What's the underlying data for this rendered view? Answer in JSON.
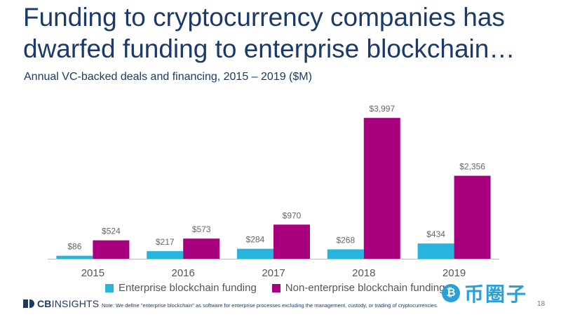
{
  "header": {
    "title": "Funding to cryptocurrency companies has dwarfed funding to enterprise blockchain…",
    "subtitle": "Annual VC-backed deals and financing, 2015 – 2019 ($M)"
  },
  "chart_data": {
    "type": "bar",
    "categories": [
      "2015",
      "2016",
      "2017",
      "2018",
      "2019"
    ],
    "series": [
      {
        "name": "Enterprise blockchain funding",
        "values": [
          86,
          217,
          284,
          268,
          434
        ],
        "labels": [
          "$86",
          "$217",
          "$284",
          "$268",
          "$434"
        ],
        "color": "#27b5e0"
      },
      {
        "name": "Non-enterprise blockchain funding",
        "values": [
          524,
          573,
          970,
          3997,
          2356
        ],
        "labels": [
          "$524",
          "$573",
          "$970",
          "$3,997",
          "$2,356"
        ],
        "color": "#a8007f"
      }
    ],
    "ylim": [
      0,
      4000
    ],
    "grid": false,
    "legend": "bottom"
  },
  "footer": {
    "logo_bold": "CB",
    "logo_thin": "INSIGHTS",
    "note": "Note: We define \"enterprise blockchain\" as software for enterprise processes excluding the management, custody, or trading of cryptocurrencies.",
    "page_number": "18",
    "watermark_badge": "₿",
    "watermark_text": "币圈子"
  },
  "colors": {
    "title": "#1b3a6b",
    "axis": "#bfbfbf",
    "tick_label": "#555555",
    "value_label": "#666666"
  }
}
